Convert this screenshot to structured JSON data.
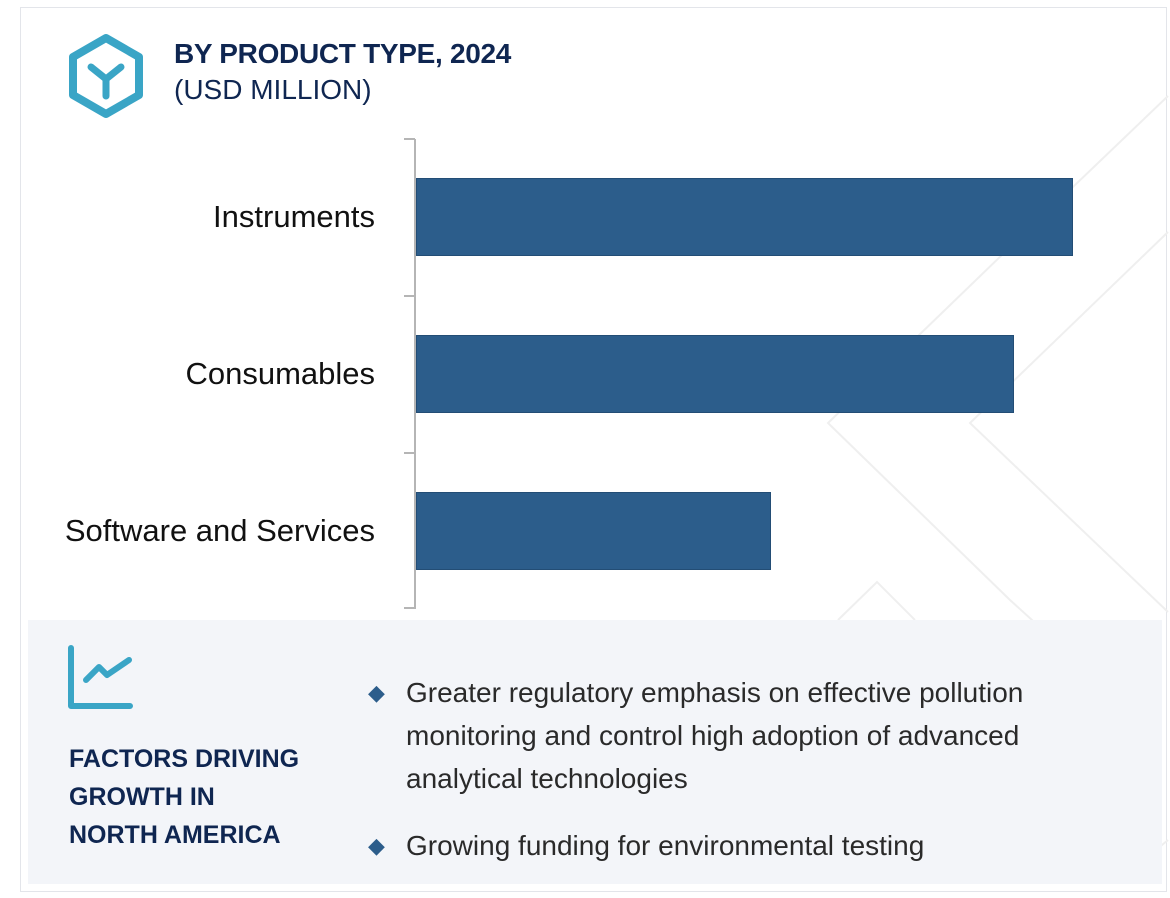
{
  "header": {
    "icon": "hexagon-cube-icon",
    "title": "BY PRODUCT TYPE, 2024",
    "subtitle": "(USD MILLION)"
  },
  "colors": {
    "bar": "#2c5d8b",
    "title": "#0f2651",
    "accent_icon": "#3aa5c6",
    "panel_bg": "#f3f5f9",
    "axis": "#b5b5b5"
  },
  "chart_data": {
    "type": "bar",
    "orientation": "horizontal",
    "title": "BY PRODUCT TYPE, 2024",
    "subtitle": "(USD MILLION)",
    "categories": [
      "Instruments",
      "Consumables",
      "Software and Services"
    ],
    "values": [
      100,
      91,
      54
    ],
    "value_note": "Relative bar lengths (no numeric axis shown); Instruments = 100",
    "xlabel": "",
    "ylabel": "",
    "xlim": [
      0,
      100
    ],
    "grid": false,
    "legend": null
  },
  "factors": {
    "icon": "trend-line-chart-icon",
    "title_lines": [
      "FACTORS DRIVING",
      "GROWTH IN",
      "NORTH AMERICA"
    ],
    "bullet_icon": "diamond-bullet-icon",
    "items": [
      {
        "lines": [
          "Greater regulatory emphasis on effective pollution",
          "monitoring and control high adoption of advanced",
          "analytical technologies"
        ]
      },
      {
        "lines": [
          "Growing funding for environmental testing"
        ]
      }
    ]
  }
}
